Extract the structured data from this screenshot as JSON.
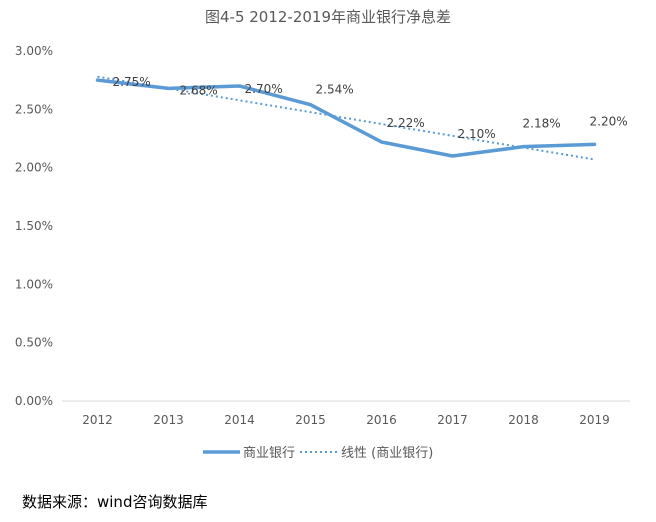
{
  "chart_data": {
    "type": "line",
    "title": "图4-5 2012-2019年商业银行净息差",
    "categories": [
      "2012",
      "2013",
      "2014",
      "2015",
      "2016",
      "2017",
      "2018",
      "2019"
    ],
    "series": [
      {
        "name": "商业银行",
        "values": [
          2.75,
          2.68,
          2.7,
          2.54,
          2.22,
          2.1,
          2.18,
          2.2
        ],
        "data_labels": [
          "2.75%",
          "2.68%",
          "2.70%",
          "2.54%",
          "2.22%",
          "2.10%",
          "2.18%",
          "2.20%"
        ],
        "color": "#5b9bd5",
        "style": "solid"
      },
      {
        "name": "线性 (商业银行)",
        "trend_endpoints": [
          2.78,
          2.07
        ],
        "color": "#5b9bd5",
        "style": "dotted"
      }
    ],
    "ylim": [
      0,
      3
    ],
    "y_ticks": [
      0,
      0.5,
      1.0,
      1.5,
      2.0,
      2.5,
      3.0
    ],
    "y_tick_labels": [
      "0.00%",
      "0.50%",
      "1.00%",
      "1.50%",
      "2.00%",
      "2.50%",
      "3.00%"
    ],
    "grid": false,
    "legend": "bottom"
  },
  "source_text": "数据来源：wind咨询数据库"
}
